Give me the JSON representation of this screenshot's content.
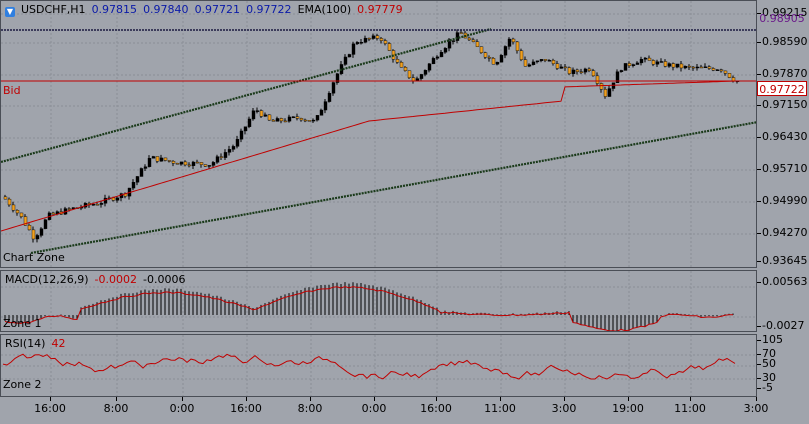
{
  "header": {
    "symbol_icon": "down-arrow-icon",
    "symbol": "USDCHF,H1",
    "open": "0.97815",
    "high": "0.97840",
    "low": "0.97721",
    "close": "0.97722",
    "ema_label": "EMA(100)",
    "ema_value": "0.97779"
  },
  "main_pane": {
    "zone_label": "Chart Zone",
    "bid_label": "Bid",
    "bid_price": "0.97722",
    "high_line_price": "0.98905",
    "price_ticks": [
      "0.99215",
      "0.98590",
      "0.97870",
      "0.97150",
      "0.96430",
      "0.95710",
      "0.94990",
      "0.94270",
      "0.93645"
    ]
  },
  "macd_pane": {
    "label": "MACD(12,26,9)",
    "value1": "-0.0002",
    "value2": "-0.0006",
    "zone_label": "Zone 1",
    "ticks": [
      "0.00563",
      "-0.0027"
    ]
  },
  "rsi_pane": {
    "label": "RSI(14)",
    "value": "42",
    "zone_label": "Zone 2",
    "ticks": [
      "105",
      "70",
      "50",
      "30",
      "-5"
    ]
  },
  "time_axis": [
    "16:00",
    "8:00",
    "0:00",
    "16:00",
    "8:00",
    "0:00",
    "16:00",
    "11:00",
    "3:00",
    "19:00",
    "11:00",
    "3:00"
  ],
  "colors": {
    "background": "#a0a4ac",
    "bull_candle": "#000000",
    "bear_candle": "#f0a020",
    "ema": "#c00000",
    "channel": "#1a3a1a",
    "grid": "#8a8e96",
    "bid_line": "#c00000"
  }
}
